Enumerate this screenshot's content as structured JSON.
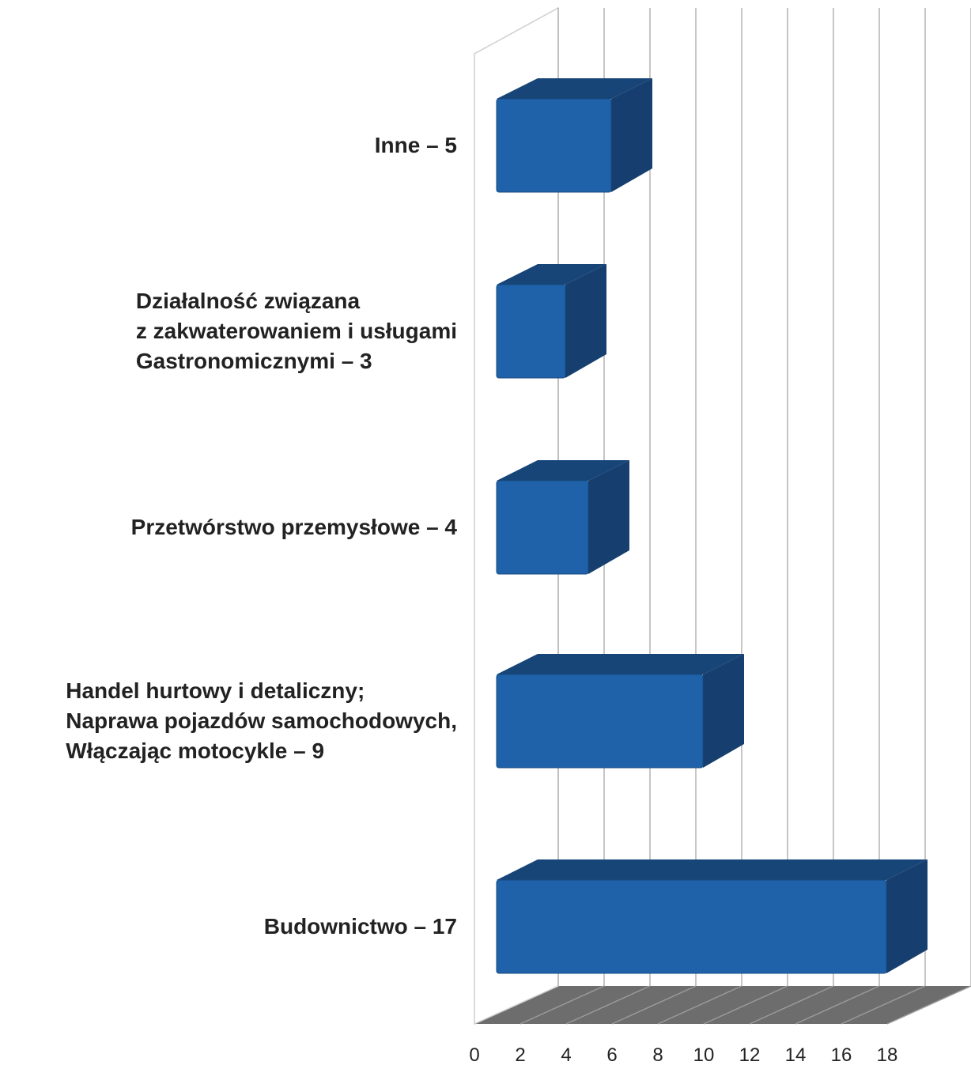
{
  "chart_data": {
    "type": "bar",
    "orientation": "horizontal",
    "three_d": true,
    "categories": [
      [
        "Inne – 5"
      ],
      [
        "Działalność związana",
        "z zakwaterowaniem i usługami",
        "Gastronomicznymi – 3"
      ],
      [
        "Przetwórstwo przemysłowe – 4"
      ],
      [
        "Handel hurtowy i detaliczny;",
        "Naprawa pojazdów samochodowych,",
        "Włączając motocykle – 9"
      ],
      [
        "Budownictwo – 17"
      ]
    ],
    "values": [
      5,
      3,
      4,
      9,
      17
    ],
    "xlim": [
      0,
      18
    ],
    "x_ticks": [
      "0",
      "2",
      "4",
      "6",
      "8",
      "10",
      "12",
      "14",
      "16",
      "18"
    ],
    "grid": true,
    "legend": "none",
    "colors": {
      "bar_front": "#1f62a9",
      "bar_top": "#174577",
      "bar_side": "#163f6f",
      "floor": "#6d6d6d",
      "grid": "#b4b4b4"
    }
  }
}
